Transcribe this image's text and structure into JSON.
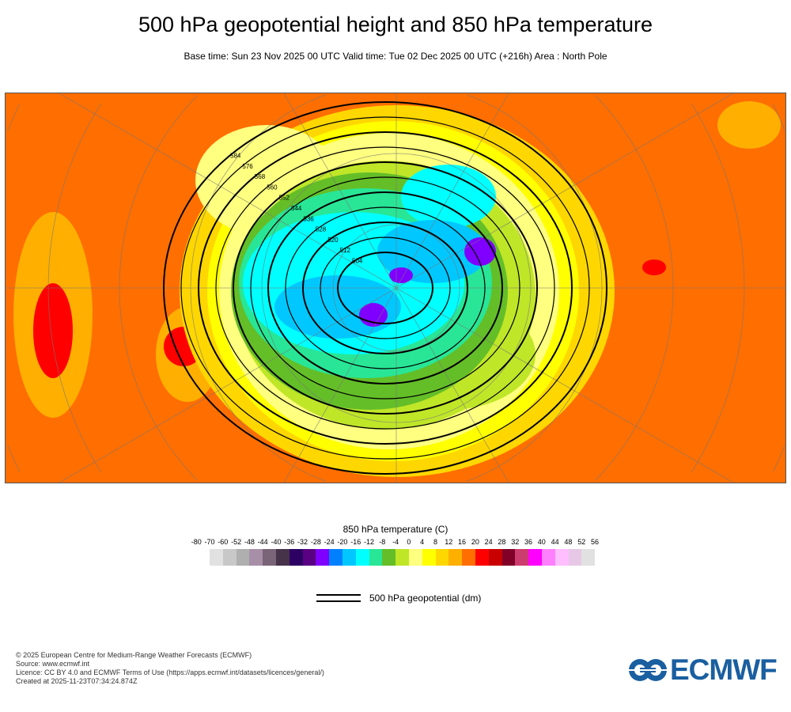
{
  "header": {
    "title": "500 hPa geopotential height and 850 hPa temperature",
    "subtitle": "Base time: Sun 23 Nov 2025 00 UTC Valid time: Tue 02 Dec 2025 00 UTC (+216h) Area : North Pole"
  },
  "chart_data": {
    "type": "heatmap",
    "projection": "polar stereographic, North Pole",
    "field_shaded": "850 hPa temperature (C)",
    "field_contoured": "500 hPa geopotential (dm)",
    "contour_labels": [
      "504",
      "512",
      "520",
      "528",
      "536",
      "544",
      "552",
      "560",
      "568",
      "576",
      "584"
    ],
    "colorbar": {
      "title": "850 hPa temperature (C)",
      "ticks": [
        "-80",
        "-70",
        "-60",
        "-52",
        "-48",
        "-44",
        "-40",
        "-36",
        "-32",
        "-28",
        "-24",
        "-20",
        "-16",
        "-12",
        "-8",
        "-4",
        "0",
        "4",
        "8",
        "12",
        "16",
        "20",
        "24",
        "28",
        "32",
        "36",
        "40",
        "44",
        "48",
        "52",
        "56"
      ],
      "colors": [
        "#e1e1e1",
        "#c8c8c8",
        "#afafaf",
        "#a88fa8",
        "#7a6478",
        "#46334a",
        "#2d0064",
        "#5a0082",
        "#8000ff",
        "#0080ff",
        "#00c8ff",
        "#00ffff",
        "#28e696",
        "#64be28",
        "#c0e628",
        "#ffff80",
        "#ffff00",
        "#ffd700",
        "#ffaf00",
        "#ff6e00",
        "#ff0000",
        "#c80000",
        "#800028",
        "#cd3c6e",
        "#ff00ff",
        "#ff80ff",
        "#ffbeff",
        "#e6c8e6",
        "#e1e1e1"
      ]
    },
    "legend": {
      "label": "500 hPa geopotential (dm)"
    }
  },
  "footer": {
    "lines": [
      "© 2025 European Centre for Medium-Range Weather Forecasts (ECMWF)",
      "Source: www.ecmwf.int",
      "Licence: CC BY 4.0 and ECMWF Terms of Use (https://apps.ecmwf.int/datasets/licences/general/)",
      "Created at 2025-11-23T07:34:24.874Z"
    ],
    "logo_text": "ECMWF"
  }
}
